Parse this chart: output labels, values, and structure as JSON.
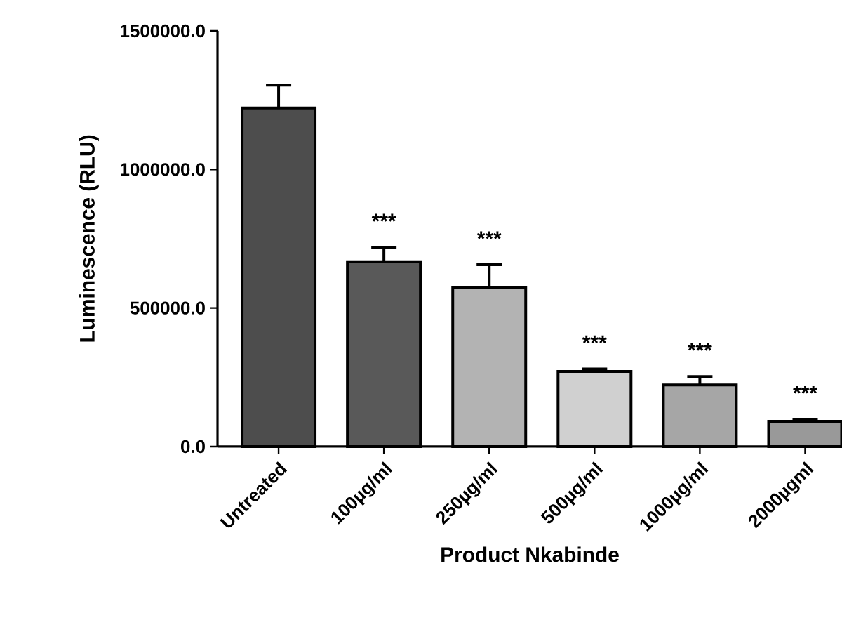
{
  "chart_data": {
    "type": "bar",
    "xlabel": "Product Nkabinde",
    "ylabel": "Luminescence (RLU)",
    "categories": [
      "Untreated",
      "100µg/ml",
      "250µg/ml",
      "500µg/ml",
      "1000µg/ml",
      "2000µgml"
    ],
    "values": [
      1222000,
      667000,
      575000,
      271000,
      222000,
      91000
    ],
    "errors": [
      [
        1222000,
        1304000
      ],
      [
        667000,
        719000
      ],
      [
        575000,
        656000
      ],
      [
        271000,
        280000
      ],
      [
        222000,
        253000
      ],
      [
        91000,
        99000
      ]
    ],
    "colors": [
      "#4d4d4d",
      "#595959",
      "#b3b3b3",
      "#d0d0d0",
      "#a6a6a6",
      "#999999"
    ],
    "ylim": [
      0,
      1500000
    ],
    "yticks": [
      {
        "value": 0,
        "label": "0.0"
      },
      {
        "value": 500000,
        "label": "500000.0"
      },
      {
        "value": 1000000,
        "label": "1000000.0"
      },
      {
        "value": 1500000,
        "label": "1500000.0"
      }
    ],
    "annotations": [
      "***",
      "***",
      "***",
      "***",
      "***"
    ],
    "grid": false
  }
}
